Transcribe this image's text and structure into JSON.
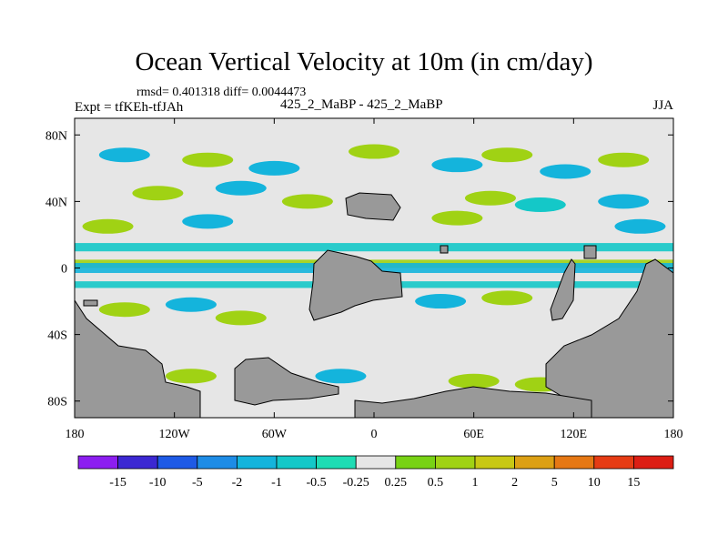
{
  "chart_data": {
    "type": "heatmap",
    "title": "Ocean Vertical Velocity at 10m (in cm/day)",
    "stats_text": "rmsd= 0.401318 diff= 0.0044473",
    "left_label": "Expt = tfKEh-tfJAh",
    "center_label": "425_2_MaBP - 425_2_MaBP",
    "right_label": "JJA",
    "x_ticks": [
      "180",
      "120W",
      "60W",
      "0",
      "60E",
      "120E",
      "180"
    ],
    "x_tick_values": [
      -180,
      -120,
      -60,
      0,
      60,
      120,
      180
    ],
    "y_ticks": [
      "80N",
      "40N",
      "0",
      "40S",
      "80S"
    ],
    "y_tick_values": [
      80,
      40,
      0,
      -40,
      -80
    ],
    "xlim": [
      -180,
      180
    ],
    "ylim": [
      -90,
      90
    ],
    "land_color": "#999999",
    "colorbar": {
      "labels": [
        "-15",
        "-10",
        "-5",
        "-2",
        "-1",
        "-0.5",
        "-0.25",
        "0.25",
        "0.5",
        "1",
        "2",
        "5",
        "10",
        "15"
      ],
      "colors": [
        "#8c1ef0",
        "#3c28d2",
        "#1e5ae6",
        "#1e8ce6",
        "#14b4dc",
        "#14c8c8",
        "#1edcb4",
        "#e6e6e6",
        "#78d214",
        "#a0d214",
        "#c8c814",
        "#dca014",
        "#e67814",
        "#e63c14",
        "#dc1e14"
      ]
    },
    "bands": [
      {
        "lat": [
          0,
          5
        ],
        "value": 0.6
      },
      {
        "lat": [
          -3,
          3
        ],
        "value": -0.7
      },
      {
        "lat": [
          10,
          15
        ],
        "value": -0.4
      },
      {
        "lat": [
          -12,
          -8
        ],
        "value": -0.3
      }
    ],
    "patches": [
      {
        "lon": 0,
        "lat": 70,
        "value": 0.6
      },
      {
        "lon": -150,
        "lat": 68,
        "value": -0.6
      },
      {
        "lon": -100,
        "lat": 65,
        "value": 0.7
      },
      {
        "lon": -60,
        "lat": 60,
        "value": -0.5
      },
      {
        "lon": 50,
        "lat": 62,
        "value": -0.6
      },
      {
        "lon": 80,
        "lat": 68,
        "value": 0.8
      },
      {
        "lon": 115,
        "lat": 58,
        "value": -0.8
      },
      {
        "lon": 150,
        "lat": 65,
        "value": 0.6
      },
      {
        "lon": -130,
        "lat": 45,
        "value": 0.6
      },
      {
        "lon": -80,
        "lat": 48,
        "value": -0.6
      },
      {
        "lon": -40,
        "lat": 40,
        "value": 0.6
      },
      {
        "lon": 70,
        "lat": 42,
        "value": 0.7
      },
      {
        "lon": 100,
        "lat": 38,
        "value": -0.4
      },
      {
        "lon": 150,
        "lat": 40,
        "value": -0.5
      },
      {
        "lon": -160,
        "lat": 25,
        "value": 0.6
      },
      {
        "lon": -100,
        "lat": 28,
        "value": -0.5
      },
      {
        "lon": 50,
        "lat": 30,
        "value": 0.6
      },
      {
        "lon": 160,
        "lat": 25,
        "value": -0.5
      },
      {
        "lon": -150,
        "lat": -25,
        "value": 0.6
      },
      {
        "lon": -110,
        "lat": -22,
        "value": -0.5
      },
      {
        "lon": -80,
        "lat": -30,
        "value": 0.7
      },
      {
        "lon": 40,
        "lat": -20,
        "value": -0.5
      },
      {
        "lon": 80,
        "lat": -18,
        "value": 0.6
      },
      {
        "lon": -110,
        "lat": -65,
        "value": 0.8
      },
      {
        "lon": -20,
        "lat": -65,
        "value": -0.6
      },
      {
        "lon": 60,
        "lat": -68,
        "value": 0.6
      },
      {
        "lon": 100,
        "lat": -70,
        "value": 0.6
      }
    ]
  }
}
